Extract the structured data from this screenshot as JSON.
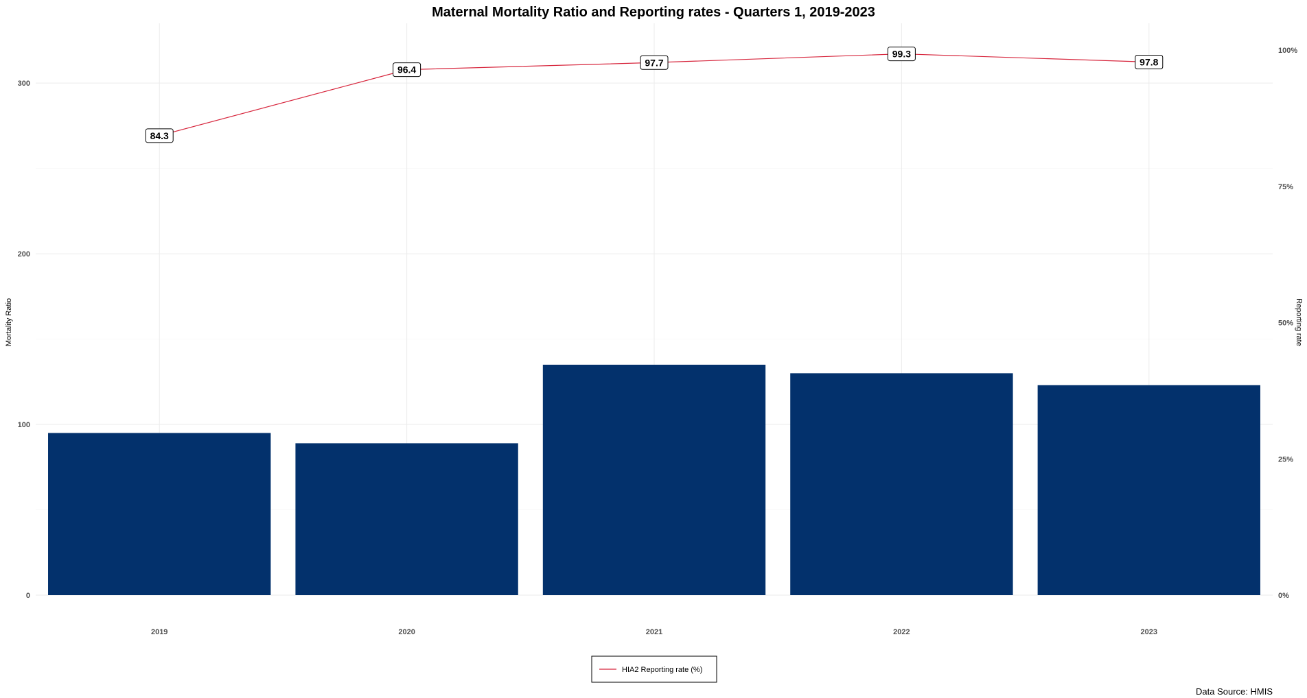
{
  "chart_data": {
    "type": "bar",
    "title": "Maternal Mortality Ratio and Reporting rates - Quarters 1, 2019-2023",
    "categories": [
      "2019",
      "2020",
      "2021",
      "2022",
      "2023"
    ],
    "bar_series": {
      "name": "",
      "values": [
        95,
        89,
        135,
        130,
        123
      ],
      "color": "#03316c"
    },
    "line_series": {
      "name": "HIA2 Reporting rate (%)",
      "values": [
        84.3,
        96.4,
        97.7,
        99.3,
        97.8
      ],
      "labels": [
        "84.3",
        "96.4",
        "97.7",
        "99.3",
        "97.8"
      ],
      "color": "#d7263d"
    },
    "y_left": {
      "label": "Mortality Ratio",
      "range": [
        0,
        335
      ],
      "ticks": [
        0,
        100,
        200,
        300
      ],
      "tick_labels": [
        "0",
        "100",
        "200",
        "300"
      ]
    },
    "y_right": {
      "label": "Reporting rate",
      "range": [
        0,
        100
      ],
      "ticks": [
        0,
        25,
        50,
        75,
        100
      ],
      "tick_labels": [
        "0%",
        "25%",
        "50%",
        "75%",
        "100%"
      ]
    },
    "grid": true,
    "legend": "bottom",
    "source": "Data Source: HMIS"
  }
}
